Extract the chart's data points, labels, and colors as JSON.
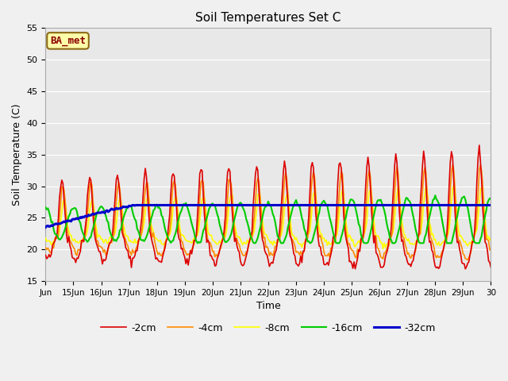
{
  "title": "Soil Temperatures Set C",
  "xlabel": "Time",
  "ylabel": "Soil Temperature (C)",
  "ylim": [
    15,
    55
  ],
  "annotation": "BA_met",
  "fig_facecolor": "#f0f0f0",
  "plot_facecolor": "#e8e8e8",
  "series": [
    {
      "label": "-2cm",
      "color": "#dd0000",
      "linewidth": 1.2,
      "zorder": 5
    },
    {
      "label": "-4cm",
      "color": "#ff8c00",
      "linewidth": 1.2,
      "zorder": 4
    },
    {
      "label": "-8cm",
      "color": "#ffff00",
      "linewidth": 1.2,
      "zorder": 3
    },
    {
      "label": "-16cm",
      "color": "#00cc00",
      "linewidth": 1.5,
      "zorder": 6
    },
    {
      "label": "-32cm",
      "color": "#0000cc",
      "linewidth": 2.2,
      "zorder": 7
    }
  ],
  "xtick_labels": [
    "Jun",
    "15Jun",
    "16Jun",
    "17Jun",
    "18Jun",
    "19Jun",
    "20Jun",
    "21Jun",
    "22Jun",
    "23Jun",
    "24Jun",
    "25Jun",
    "26Jun",
    "27Jun",
    "28Jun",
    "29Jun",
    "30"
  ],
  "xtick_positions": [
    0,
    24,
    48,
    72,
    96,
    120,
    144,
    168,
    192,
    216,
    240,
    264,
    288,
    312,
    336,
    360,
    384
  ],
  "total_hours": 385,
  "yticks": [
    15,
    20,
    25,
    30,
    35,
    40,
    45,
    50,
    55
  ]
}
